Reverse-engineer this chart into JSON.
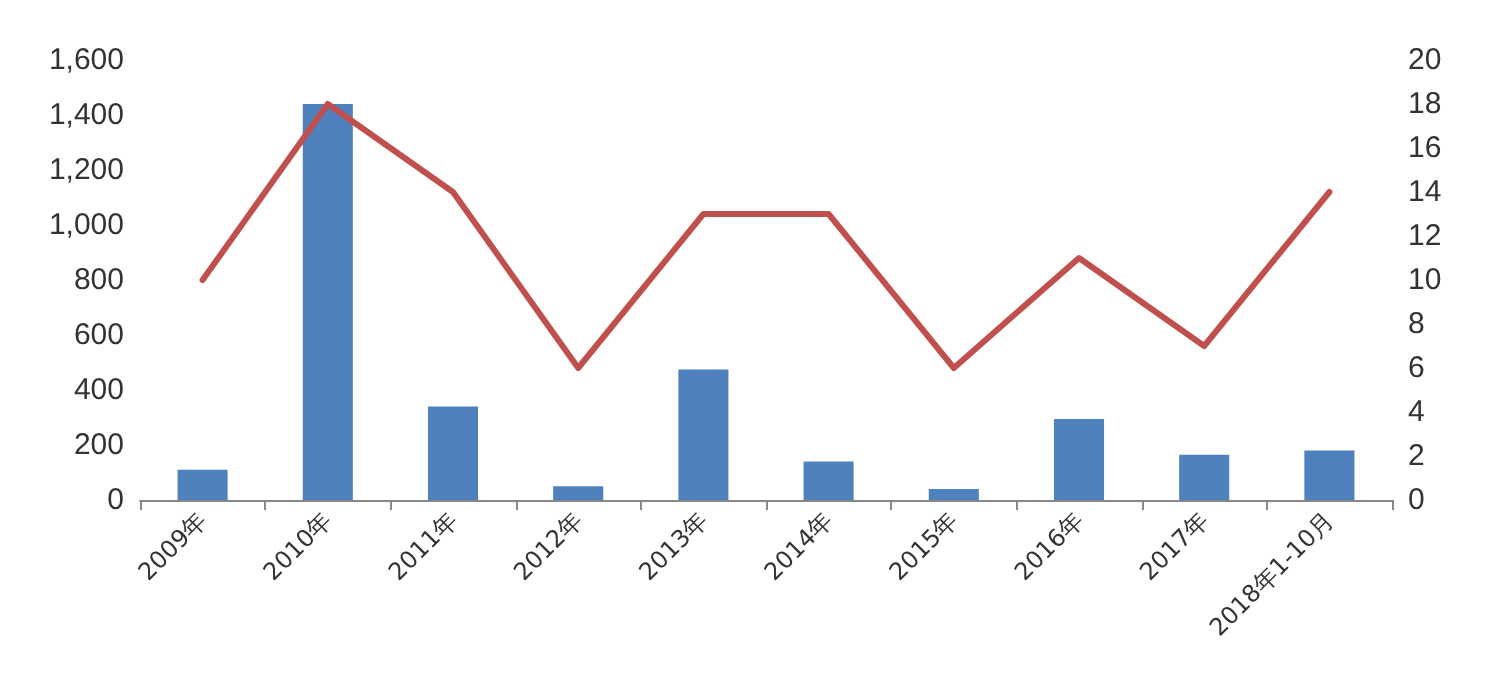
{
  "chart_data": {
    "type": "bar",
    "categories": [
      "2009年",
      "2010年",
      "2011年",
      "2012年",
      "2013年",
      "2014年",
      "2015年",
      "2016年",
      "2017年",
      "2018年1-10月"
    ],
    "series": [
      {
        "color": "#4f81bd",
        "values": [
          110,
          1440,
          340,
          50,
          475,
          140,
          40,
          295,
          165,
          180
        ]
      },
      {
        "type": "line",
        "axis": "y2",
        "color": "#c0504d",
        "values": [
          10,
          18,
          14,
          6,
          13,
          13,
          6,
          11,
          7,
          14
        ]
      }
    ],
    "ylim": [
      0,
      1600
    ],
    "yticks": [
      {
        "value": 0,
        "label": "0"
      },
      {
        "value": 200,
        "label": "200"
      },
      {
        "value": 400,
        "label": "400"
      },
      {
        "value": 600,
        "label": "600"
      },
      {
        "value": 800,
        "label": "800"
      },
      {
        "value": 1000,
        "label": "1,000"
      },
      {
        "value": 1200,
        "label": "1,200"
      },
      {
        "value": 1400,
        "label": "1,400"
      },
      {
        "value": 1600,
        "label": "1,600"
      }
    ],
    "y2lim": [
      0,
      20
    ],
    "y2ticks": [
      0,
      2,
      4,
      6,
      8,
      10,
      12,
      14,
      16,
      18,
      20
    ],
    "grid": false,
    "marker": "none",
    "line_style": "solid"
  }
}
